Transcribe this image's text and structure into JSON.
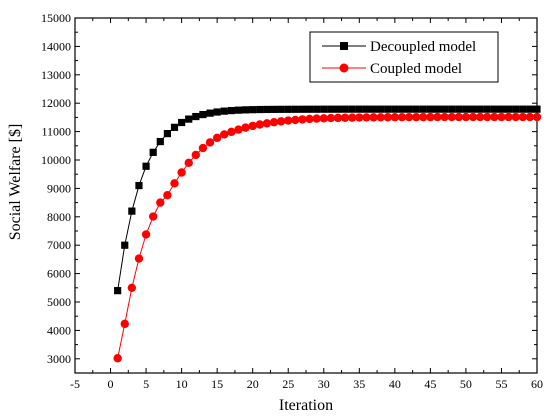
{
  "chart_data": {
    "type": "line",
    "xlabel": "Iteration",
    "ylabel": "Social Welfare [$]",
    "xlim": [
      -5,
      60
    ],
    "ylim": [
      2500,
      15000
    ],
    "xticks": [
      -5,
      0,
      5,
      10,
      15,
      20,
      25,
      30,
      35,
      40,
      45,
      50,
      55,
      60
    ],
    "yticks": [
      3000,
      4000,
      5000,
      6000,
      7000,
      8000,
      9000,
      10000,
      11000,
      12000,
      13000,
      14000,
      15000
    ],
    "grid": false,
    "legend_position": "top-right",
    "x": [
      1,
      2,
      3,
      4,
      5,
      6,
      7,
      8,
      9,
      10,
      11,
      12,
      13,
      14,
      15,
      16,
      17,
      18,
      19,
      20,
      21,
      22,
      23,
      24,
      25,
      26,
      27,
      28,
      29,
      30,
      31,
      32,
      33,
      34,
      35,
      36,
      37,
      38,
      39,
      40,
      41,
      42,
      43,
      44,
      45,
      46,
      47,
      48,
      49,
      50,
      51,
      52,
      53,
      54,
      55,
      56,
      57,
      58,
      59,
      60
    ],
    "series": [
      {
        "name": "Decoupled model",
        "color": "#000000",
        "marker": "square",
        "values": [
          5400,
          7000,
          8200,
          9100,
          9780,
          10270,
          10650,
          10930,
          11150,
          11320,
          11440,
          11530,
          11600,
          11650,
          11690,
          11720,
          11740,
          11755,
          11765,
          11772,
          11777,
          11780,
          11782,
          11784,
          11785,
          11786,
          11787,
          11788,
          11788,
          11789,
          11789,
          11789,
          11790,
          11790,
          11790,
          11790,
          11790,
          11790,
          11790,
          11790,
          11790,
          11790,
          11790,
          11790,
          11790,
          11790,
          11790,
          11790,
          11790,
          11790,
          11790,
          11790,
          11790,
          11790,
          11790,
          11790,
          11790,
          11790,
          11790,
          11790
        ]
      },
      {
        "name": "Coupled model",
        "color": "#ff0000",
        "marker": "circle",
        "values": [
          3020,
          4230,
          5500,
          6530,
          7380,
          8010,
          8500,
          8760,
          9180,
          9560,
          9900,
          10180,
          10420,
          10620,
          10780,
          10900,
          10990,
          11070,
          11140,
          11200,
          11250,
          11290,
          11330,
          11360,
          11390,
          11410,
          11430,
          11445,
          11458,
          11468,
          11476,
          11483,
          11488,
          11492,
          11496,
          11499,
          11501,
          11503,
          11505,
          11506,
          11507,
          11508,
          11509,
          11510,
          11510,
          11511,
          11511,
          11512,
          11512,
          11512,
          11513,
          11513,
          11513,
          11513,
          11513,
          11513,
          11513,
          11513,
          11513,
          11513
        ]
      }
    ]
  }
}
